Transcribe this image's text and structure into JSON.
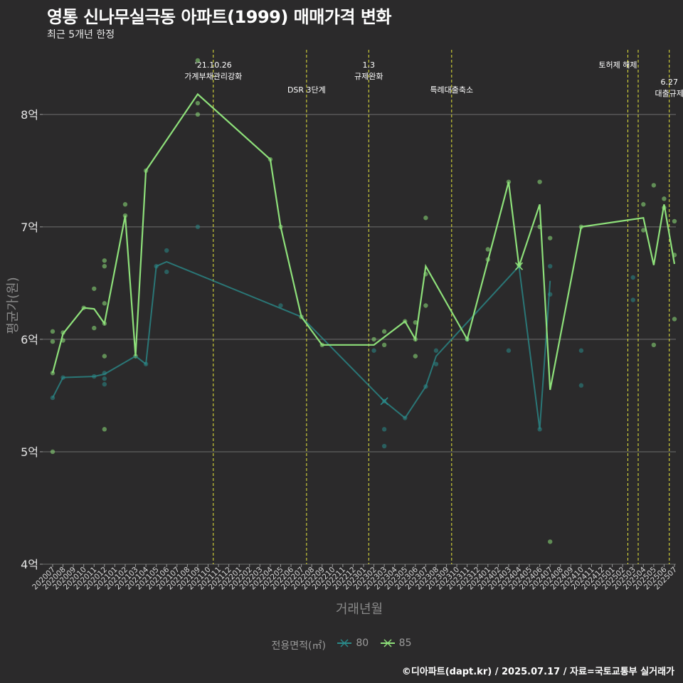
{
  "title": "영통 신나무실극동 아파트(1999) 매매가격 변화",
  "subtitle": "최근 5개년 한정",
  "caption": "©디아파트(dapt.kr) / 2025.07.17 / 자료=국토교통부 실거래가",
  "legend": {
    "title": "전용면적(㎡)",
    "items": [
      {
        "label": "80",
        "color": "#2a8a8a"
      },
      {
        "label": "85",
        "color": "#8ee07a"
      }
    ]
  },
  "chart_data": {
    "type": "line",
    "xlabel": "거래년월",
    "ylabel": "평균가(원)",
    "ylim": [
      4,
      8.6
    ],
    "yticks": [
      {
        "value": 4,
        "label": "4억"
      },
      {
        "value": 5,
        "label": "5억"
      },
      {
        "value": 6,
        "label": "6억"
      },
      {
        "value": 7,
        "label": "7억"
      },
      {
        "value": 8,
        "label": "8억"
      }
    ],
    "categories": [
      "202007",
      "202008",
      "202009",
      "202010",
      "202011",
      "202012",
      "202101",
      "202102",
      "202103",
      "202104",
      "202105",
      "202106",
      "202107",
      "202108",
      "202109",
      "202110",
      "202111",
      "202112",
      "202201",
      "202202",
      "202203",
      "202204",
      "202205",
      "202206",
      "202207",
      "202208",
      "202209",
      "202210",
      "202211",
      "202212",
      "202301",
      "202302",
      "202303",
      "202304",
      "202305",
      "202306",
      "202307",
      "202308",
      "202309",
      "202310",
      "202311",
      "202312",
      "202401",
      "202402",
      "202403",
      "202404",
      "202405",
      "202406",
      "202407",
      "202408",
      "202409",
      "202410",
      "202411",
      "202412",
      "202501",
      "202502",
      "202503",
      "202504",
      "202505",
      "202506",
      "202507"
    ],
    "grid": true,
    "annotations": [
      {
        "month": "202110",
        "lines": [
          "'21.10.26",
          "가계부채관리강화"
        ],
        "row": 0
      },
      {
        "month": "202207",
        "lines": [
          "DSR 3단계"
        ],
        "row": 1
      },
      {
        "month": "202301",
        "lines": [
          "1.3",
          "규제완화"
        ],
        "row": 0
      },
      {
        "month": "202309",
        "lines": [
          "특례대출축소"
        ],
        "row": 1
      },
      {
        "month": "202502",
        "lines": [
          "토허제 해제"
        ],
        "row": 0,
        "anchor": "left"
      },
      {
        "month": "202503",
        "lines": [],
        "row": 0
      },
      {
        "month": "202506",
        "lines": [
          "6.27",
          "대출규제"
        ],
        "row": 2
      }
    ],
    "series": [
      {
        "name": "80",
        "color": "#2a8a8a",
        "points": [
          [
            "202007",
            5.48
          ],
          [
            "202008",
            5.66
          ],
          [
            "202011",
            5.67
          ],
          [
            "202012",
            5.69
          ],
          [
            "202103",
            5.85
          ],
          [
            "202104",
            5.78
          ],
          [
            "202105",
            6.65
          ],
          [
            "202106",
            6.69
          ],
          [
            "202207",
            6.2
          ],
          [
            "202303",
            5.45
          ],
          [
            "202305",
            5.3
          ],
          [
            "202307",
            5.58
          ],
          [
            "202308",
            5.85
          ],
          [
            "202404",
            6.65
          ],
          [
            "202406",
            5.2
          ],
          [
            "202407",
            6.52
          ]
        ],
        "scatter": [
          [
            "202007",
            5.48
          ],
          [
            "202008",
            5.66
          ],
          [
            "202011",
            5.67
          ],
          [
            "202012",
            5.7
          ],
          [
            "202012",
            5.65
          ],
          [
            "202012",
            5.6
          ],
          [
            "202104",
            5.78
          ],
          [
            "202105",
            6.65
          ],
          [
            "202106",
            6.6
          ],
          [
            "202106",
            6.79
          ],
          [
            "202109",
            7.0
          ],
          [
            "202205",
            6.3
          ],
          [
            "202302",
            5.9
          ],
          [
            "202303",
            5.45
          ],
          [
            "202303",
            5.2
          ],
          [
            "202303",
            5.05
          ],
          [
            "202305",
            5.3
          ],
          [
            "202307",
            5.58
          ],
          [
            "202308",
            5.78
          ],
          [
            "202308",
            5.9
          ],
          [
            "202311",
            6.0
          ],
          [
            "202403",
            5.9
          ],
          [
            "202404",
            6.65
          ],
          [
            "202406",
            5.2
          ],
          [
            "202407",
            6.4
          ],
          [
            "202407",
            6.65
          ],
          [
            "202410",
            5.9
          ],
          [
            "202410",
            5.59
          ],
          [
            "202503",
            6.55
          ],
          [
            "202503",
            6.35
          ]
        ]
      },
      {
        "name": "85",
        "color": "#8ee07a",
        "points": [
          [
            "202007",
            5.7
          ],
          [
            "202008",
            6.05
          ],
          [
            "202010",
            6.28
          ],
          [
            "202011",
            6.27
          ],
          [
            "202012",
            6.14
          ],
          [
            "202102",
            7.1
          ],
          [
            "202103",
            5.85
          ],
          [
            "202104",
            7.5
          ],
          [
            "202109",
            8.18
          ],
          [
            "202204",
            7.6
          ],
          [
            "202205",
            7.0
          ],
          [
            "202207",
            6.2
          ],
          [
            "202209",
            5.95
          ],
          [
            "202302",
            5.95
          ],
          [
            "202305",
            6.16
          ],
          [
            "202306",
            6.0
          ],
          [
            "202307",
            6.65
          ],
          [
            "202311",
            6.0
          ],
          [
            "202401",
            6.7
          ],
          [
            "202403",
            7.4
          ],
          [
            "202404",
            6.65
          ],
          [
            "202406",
            7.2
          ],
          [
            "202407",
            5.55
          ],
          [
            "202410",
            7.0
          ],
          [
            "202504",
            7.08
          ],
          [
            "202505",
            6.66
          ],
          [
            "202506",
            7.2
          ],
          [
            "202507",
            6.67
          ]
        ],
        "scatter": [
          [
            "202007",
            5.7
          ],
          [
            "202007",
            6.07
          ],
          [
            "202007",
            5.98
          ],
          [
            "202007",
            5.0
          ],
          [
            "202008",
            6.06
          ],
          [
            "202008",
            5.99
          ],
          [
            "202010",
            6.28
          ],
          [
            "202011",
            6.45
          ],
          [
            "202011",
            6.1
          ],
          [
            "202012",
            6.7
          ],
          [
            "202012",
            6.65
          ],
          [
            "202012",
            6.32
          ],
          [
            "202012",
            6.14
          ],
          [
            "202012",
            5.85
          ],
          [
            "202012",
            5.2
          ],
          [
            "202102",
            7.2
          ],
          [
            "202102",
            7.1
          ],
          [
            "202103",
            5.85
          ],
          [
            "202104",
            7.5
          ],
          [
            "202109",
            8.48
          ],
          [
            "202109",
            8.1
          ],
          [
            "202109",
            8.0
          ],
          [
            "202204",
            7.6
          ],
          [
            "202205",
            7.0
          ],
          [
            "202207",
            6.2
          ],
          [
            "202209",
            5.95
          ],
          [
            "202302",
            6.0
          ],
          [
            "202303",
            6.07
          ],
          [
            "202303",
            5.95
          ],
          [
            "202305",
            6.16
          ],
          [
            "202306",
            6.15
          ],
          [
            "202306",
            6.0
          ],
          [
            "202306",
            5.85
          ],
          [
            "202307",
            7.08
          ],
          [
            "202307",
            6.58
          ],
          [
            "202307",
            6.3
          ],
          [
            "202311",
            6.0
          ],
          [
            "202401",
            6.8
          ],
          [
            "202401",
            6.71
          ],
          [
            "202403",
            7.4
          ],
          [
            "202404",
            6.66
          ],
          [
            "202406",
            7.4
          ],
          [
            "202406",
            7.0
          ],
          [
            "202407",
            6.9
          ],
          [
            "202407",
            4.2
          ],
          [
            "202410",
            7.0
          ],
          [
            "202504",
            7.2
          ],
          [
            "202504",
            6.97
          ],
          [
            "202505",
            7.37
          ],
          [
            "202505",
            5.95
          ],
          [
            "202506",
            7.25
          ],
          [
            "202506",
            7.17
          ],
          [
            "202507",
            7.05
          ],
          [
            "202507",
            6.75
          ],
          [
            "202507",
            6.18
          ]
        ]
      }
    ]
  }
}
